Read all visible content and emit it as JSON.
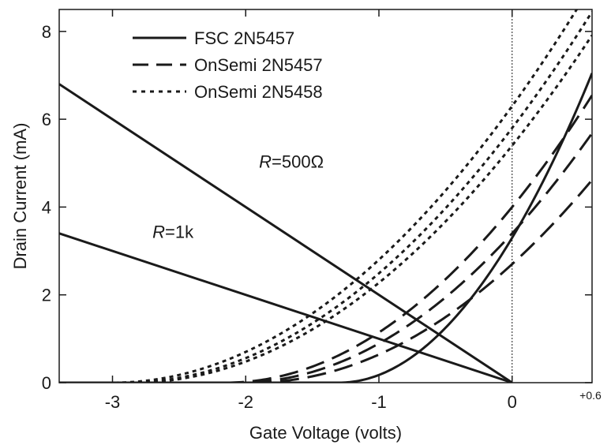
{
  "chart_data": {
    "type": "line",
    "xlabel": "Gate Voltage (volts)",
    "ylabel": "Drain Current (mA)",
    "xlim": [
      -3.4,
      0.6
    ],
    "ylim": [
      0,
      8.5
    ],
    "x_ticks": [
      -3,
      -2,
      -1,
      0
    ],
    "x_tick_labels": [
      "-3",
      "-2",
      "-1",
      "0"
    ],
    "x_extra_tick": {
      "value": 0.6,
      "label": "+0.6"
    },
    "y_ticks": [
      0,
      2,
      4,
      6,
      8
    ],
    "y_tick_labels": [
      "0",
      "2",
      "4",
      "6",
      "8"
    ],
    "grid": false,
    "reference_line": {
      "x": 0,
      "style": "dotted"
    },
    "legend": {
      "placement": "top-left",
      "entries": [
        {
          "label": "FSC 2N5457",
          "style": "solid"
        },
        {
          "label": "OnSemi 2N5457",
          "style": "long-dash"
        },
        {
          "label": "OnSemi 2N5458",
          "style": "dotted"
        }
      ]
    },
    "series": [
      {
        "name": "FSC 2N5457",
        "style": "solid",
        "curve": {
          "idss": 3.3,
          "vp": 1.3
        }
      },
      {
        "name": "OnSemi 2N5457",
        "style": "long-dash",
        "curve": {
          "idss": 4.0,
          "vp": 2.15
        }
      },
      {
        "name": "OnSemi 2N5457",
        "style": "long-dash",
        "curve": {
          "idss": 3.4,
          "vp": 2.05
        }
      },
      {
        "name": "OnSemi 2N5457",
        "style": "long-dash",
        "curve": {
          "idss": 2.7,
          "vp": 1.95
        }
      },
      {
        "name": "OnSemi 2N5458",
        "style": "dotted",
        "curve": {
          "idss": 6.3,
          "vp": 3.0
        }
      },
      {
        "name": "OnSemi 2N5458",
        "style": "dotted",
        "curve": {
          "idss": 5.8,
          "vp": 2.9
        }
      },
      {
        "name": "OnSemi 2N5458",
        "style": "dotted",
        "curve": {
          "idss": 5.4,
          "vp": 2.85
        }
      },
      {
        "name": "R=500Ω",
        "style": "solid",
        "x": [
          -3.4,
          0
        ],
        "y": [
          6.8,
          0
        ]
      },
      {
        "name": "R=1k",
        "style": "solid",
        "x": [
          -3.4,
          0
        ],
        "y": [
          3.4,
          0
        ]
      }
    ],
    "annotations": [
      {
        "italic": "R",
        "text": "=500Ω",
        "x": -1.9,
        "y": 4.9
      },
      {
        "italic": "R",
        "text": "=1k",
        "x": -2.7,
        "y": 3.3
      }
    ]
  }
}
